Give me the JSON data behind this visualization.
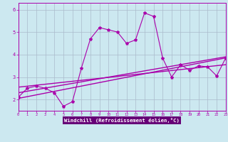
{
  "xlabel": "Windchill (Refroidissement éolien,°C)",
  "xlim": [
    0,
    23
  ],
  "ylim": [
    1.5,
    6.3
  ],
  "yticks": [
    2,
    3,
    4,
    5,
    6
  ],
  "xticks": [
    0,
    1,
    2,
    3,
    4,
    5,
    6,
    7,
    8,
    9,
    10,
    11,
    12,
    13,
    14,
    15,
    16,
    17,
    18,
    19,
    20,
    21,
    22,
    23
  ],
  "bg_color": "#cce8f0",
  "plot_bg": "#cce8f0",
  "line_color": "#aa00aa",
  "grid_color": "#aabbcc",
  "axis_label_bg": "#7b00a0",
  "series": [
    [
      0,
      2.1
    ],
    [
      1,
      2.5
    ],
    [
      2,
      2.6
    ],
    [
      3,
      2.5
    ],
    [
      4,
      2.3
    ],
    [
      5,
      1.7
    ],
    [
      6,
      1.9
    ],
    [
      7,
      3.4
    ],
    [
      8,
      4.7
    ],
    [
      9,
      5.2
    ],
    [
      10,
      5.1
    ],
    [
      11,
      5.0
    ],
    [
      12,
      4.5
    ],
    [
      13,
      4.65
    ],
    [
      14,
      5.85
    ],
    [
      15,
      5.7
    ],
    [
      16,
      3.85
    ],
    [
      17,
      3.0
    ],
    [
      18,
      3.55
    ],
    [
      19,
      3.3
    ],
    [
      20,
      3.5
    ],
    [
      21,
      3.45
    ],
    [
      22,
      3.05
    ],
    [
      23,
      3.85
    ]
  ],
  "regression_lines": [
    [
      [
        0,
        2.05
      ],
      [
        23,
        3.85
      ]
    ],
    [
      [
        0,
        2.3
      ],
      [
        23,
        3.9
      ]
    ],
    [
      [
        0,
        2.55
      ],
      [
        23,
        3.55
      ]
    ]
  ]
}
